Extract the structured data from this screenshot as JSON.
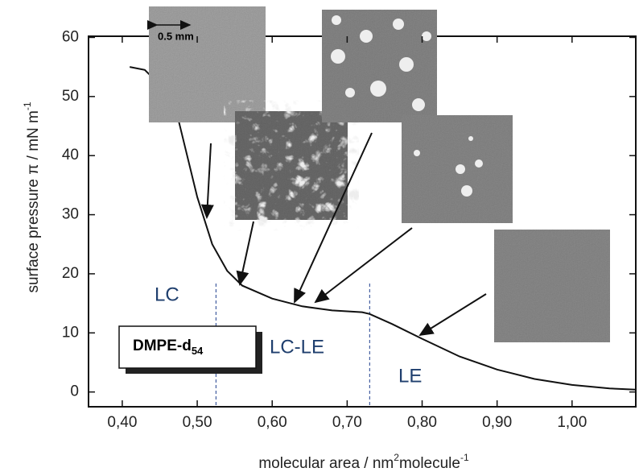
{
  "chart_data": {
    "type": "line",
    "x": [
      0.41,
      0.43,
      0.45,
      0.475,
      0.5,
      0.52,
      0.54,
      0.56,
      0.6,
      0.64,
      0.68,
      0.72,
      0.73,
      0.76,
      0.8,
      0.85,
      0.9,
      0.95,
      1.0,
      1.05,
      1.085
    ],
    "values": [
      55,
      54.5,
      52,
      46,
      33,
      25,
      20.5,
      18,
      15.8,
      14.5,
      13.8,
      13.5,
      13.2,
      11.5,
      9,
      6,
      3.8,
      2.2,
      1.2,
      0.6,
      0.4
    ],
    "color": "#111111",
    "xlabel": [
      "molecular area / nm",
      "2",
      "molecule",
      "-1"
    ],
    "ylabel": [
      "surface pressure π / mN m",
      "-1"
    ],
    "xlim": [
      0.355,
      1.085
    ],
    "ylim": [
      -2.5,
      60.2
    ],
    "xticks": [
      {
        "value": 0.4,
        "label": "0,40"
      },
      {
        "value": 0.5,
        "label": "0,50"
      },
      {
        "value": 0.6,
        "label": "0,60"
      },
      {
        "value": 0.7,
        "label": "0,70"
      },
      {
        "value": 0.8,
        "label": "0,80"
      },
      {
        "value": 0.9,
        "label": "0,90"
      },
      {
        "value": 1.0,
        "label": "1,00"
      }
    ],
    "yticks": [
      0,
      10,
      20,
      30,
      40,
      50,
      60
    ],
    "phase_boundaries": [
      0.525,
      0.73
    ],
    "annotations": [
      "LC",
      "LC-LE",
      "LE"
    ],
    "legend_label": [
      "DMPE-d",
      "54"
    ],
    "scale_bar": "0.5 mm"
  }
}
